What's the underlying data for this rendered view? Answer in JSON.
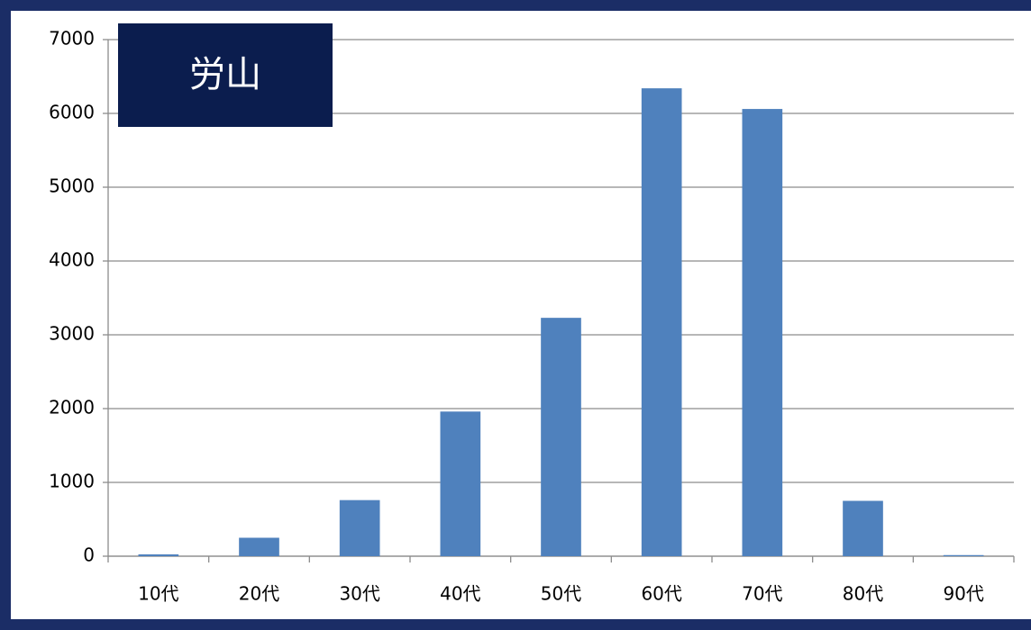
{
  "chart_data": {
    "type": "bar",
    "title": "労山",
    "categories": [
      "10代",
      "20代",
      "30代",
      "40代",
      "50代",
      "60代",
      "70代",
      "80代",
      "90代"
    ],
    "values": [
      25,
      250,
      760,
      1960,
      3230,
      6340,
      6060,
      750,
      15
    ],
    "color": "#4f81bd",
    "ylim": [
      0,
      7000
    ],
    "yticks": [
      0,
      1000,
      2000,
      3000,
      4000,
      5000,
      6000,
      7000
    ],
    "grid": true
  }
}
